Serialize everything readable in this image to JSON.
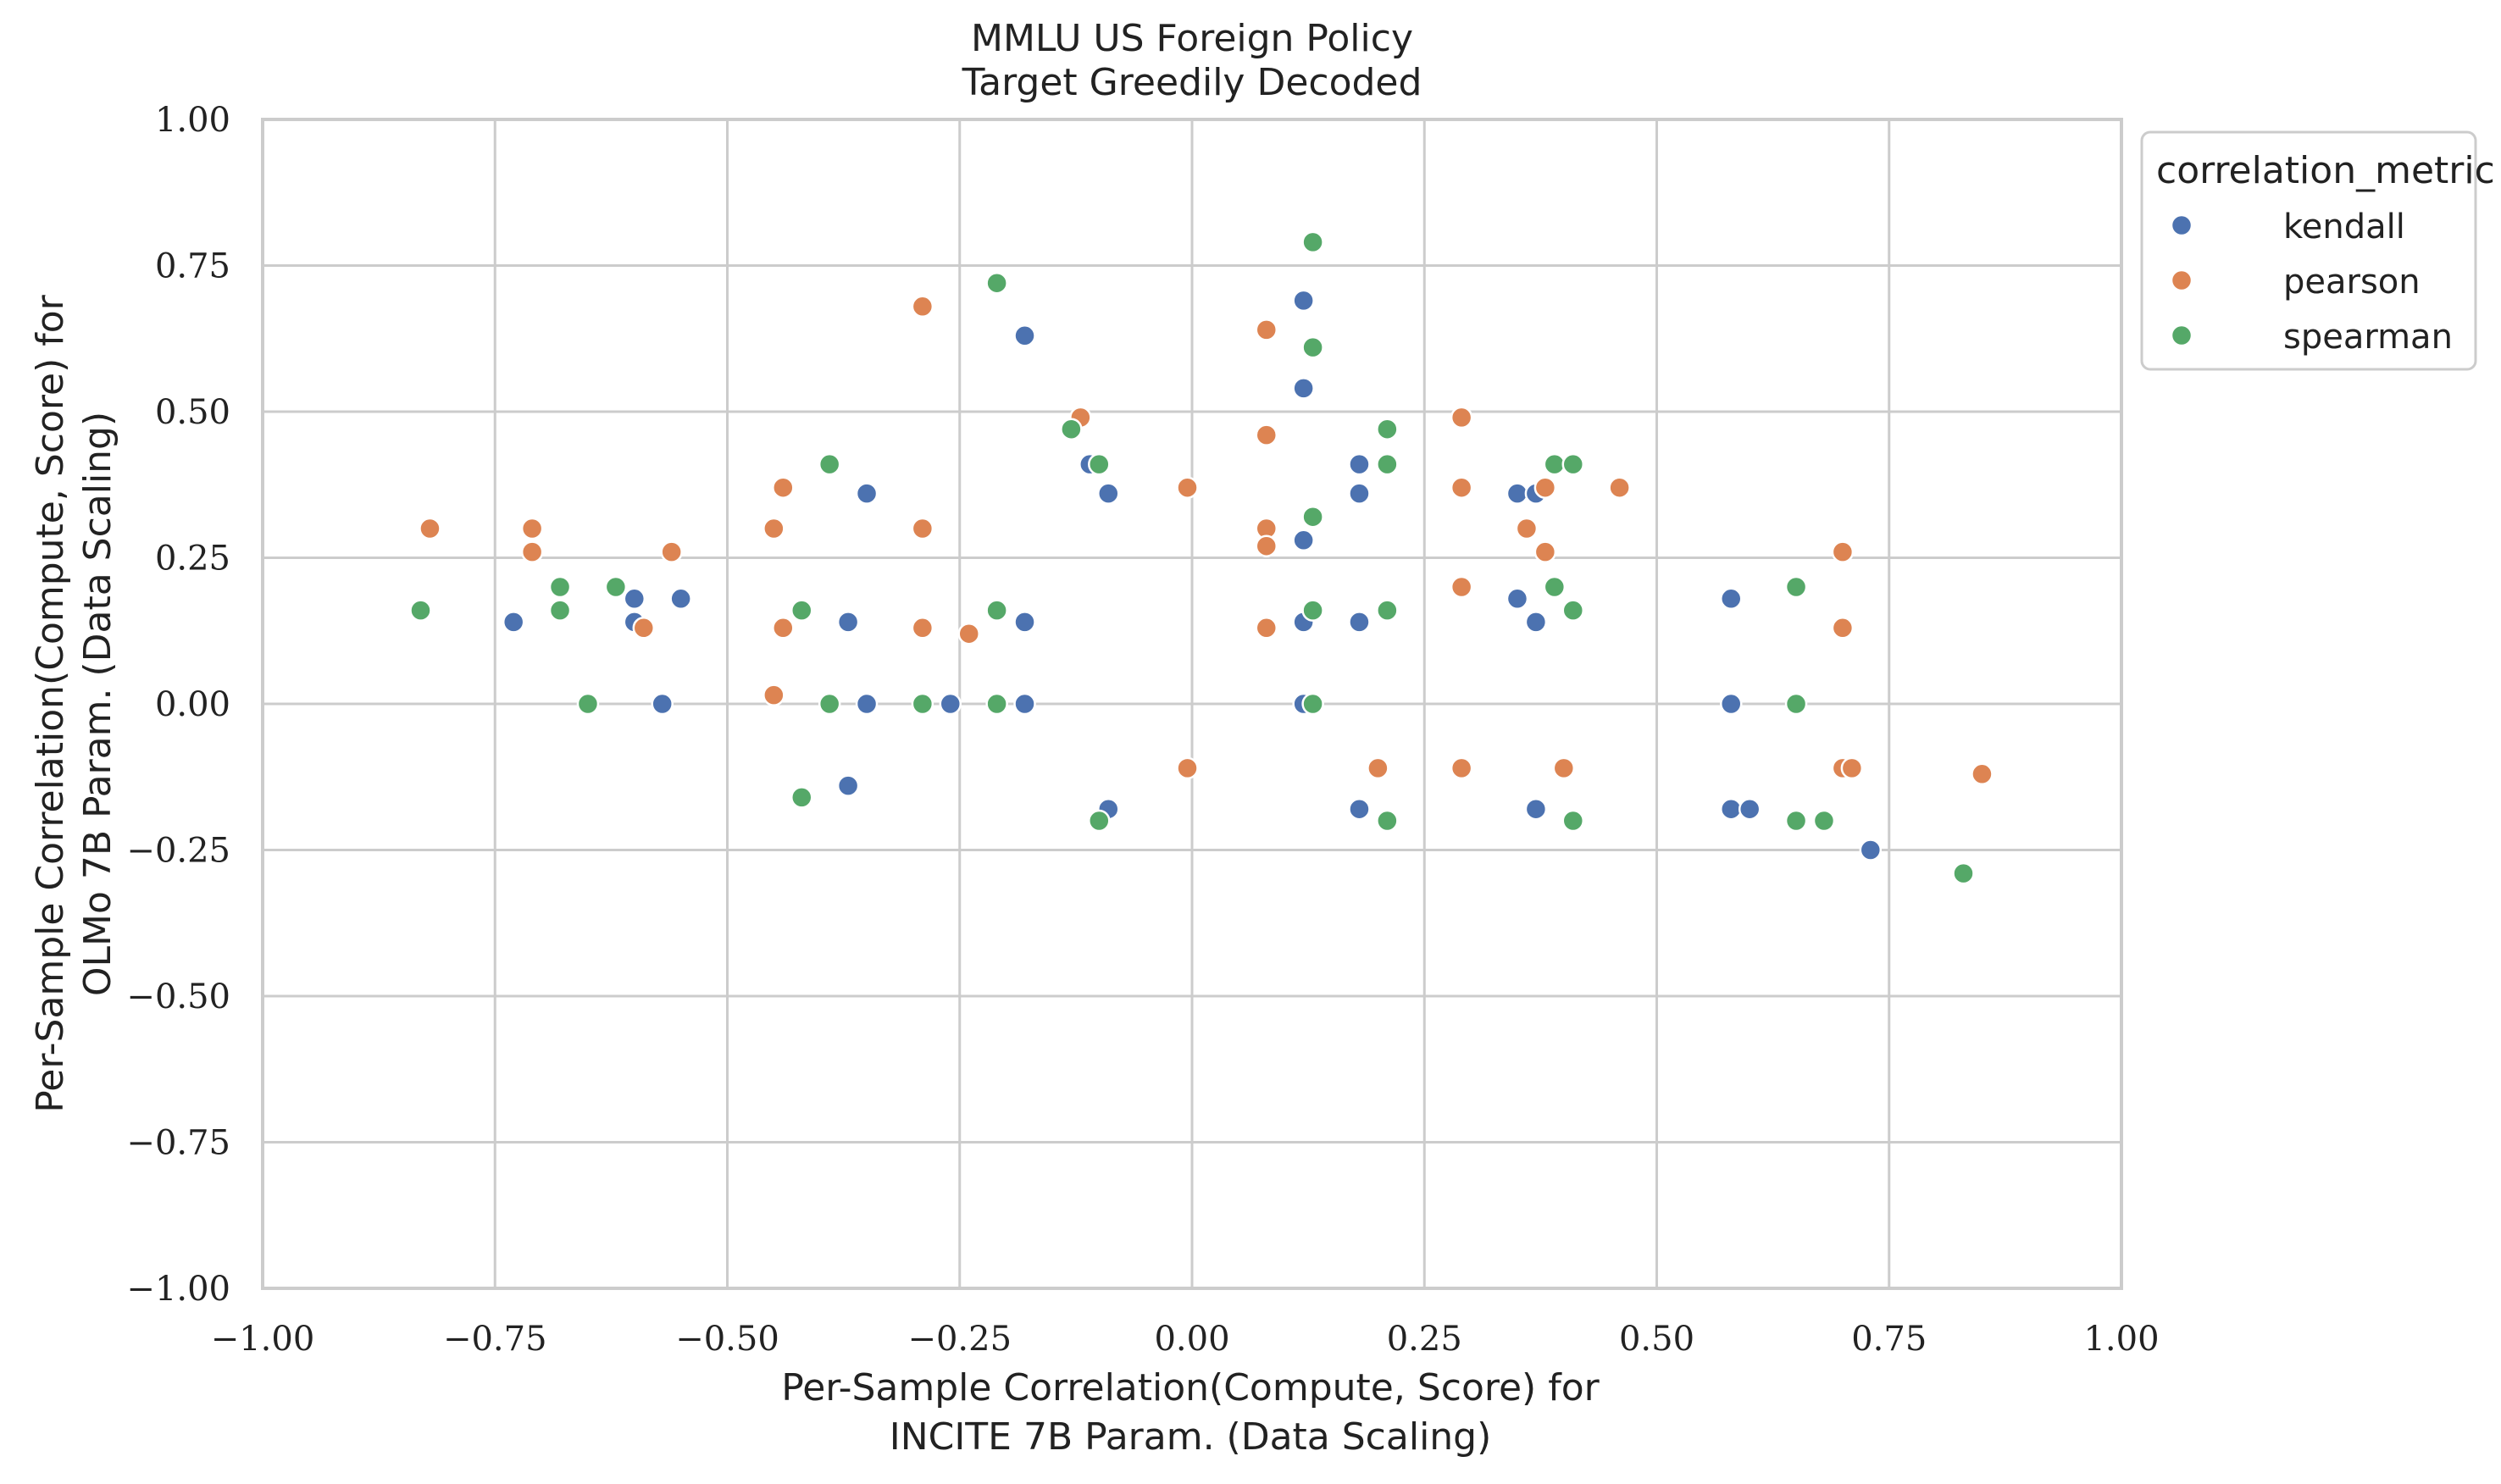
{
  "chart_data": {
    "type": "scatter",
    "title": "MMLU US Foreign Policy",
    "subtitle": "Target Greedily Decoded",
    "xlabel_line1": "Per-Sample Correlation(Compute, Score) for",
    "xlabel_line2": "INCITE 7B Param. (Data Scaling)",
    "ylabel_line1": "Per-Sample Correlation(Compute, Score) for",
    "ylabel_line2": "OLMo 7B Param. (Data Scaling)",
    "xlim": [
      -1.0,
      1.0
    ],
    "ylim": [
      -1.0,
      1.0
    ],
    "xticks": [
      -1.0,
      -0.75,
      -0.5,
      -0.25,
      0.0,
      0.25,
      0.5,
      0.75,
      1.0
    ],
    "yticks": [
      -1.0,
      -0.75,
      -0.5,
      -0.25,
      0.0,
      0.25,
      0.5,
      0.75,
      1.0
    ],
    "xtick_labels": [
      "−1.00",
      "−0.75",
      "−0.50",
      "−0.25",
      "0.00",
      "0.25",
      "0.50",
      "0.75",
      "1.00"
    ],
    "ytick_labels": [
      "−1.00",
      "−0.75",
      "−0.50",
      "−0.25",
      "0.00",
      "0.25",
      "0.50",
      "0.75",
      "1.00"
    ],
    "grid": true,
    "legend": {
      "title": "correlation_metric",
      "placement": "outside upper-right"
    },
    "series": [
      {
        "name": "kendall",
        "color": "#4C72B0",
        "points": [
          [
            -0.73,
            0.14
          ],
          [
            -0.6,
            0.18
          ],
          [
            -0.6,
            0.14
          ],
          [
            -0.57,
            0.0
          ],
          [
            -0.55,
            0.18
          ],
          [
            -0.35,
            0.36
          ],
          [
            -0.37,
            0.14
          ],
          [
            -0.35,
            0.0
          ],
          [
            -0.37,
            -0.14
          ],
          [
            -0.26,
            0.0
          ],
          [
            -0.18,
            0.63
          ],
          [
            -0.18,
            0.14
          ],
          [
            -0.18,
            0.0
          ],
          [
            -0.11,
            0.41
          ],
          [
            -0.09,
            0.36
          ],
          [
            -0.09,
            -0.18
          ],
          [
            0.12,
            0.69
          ],
          [
            0.12,
            0.54
          ],
          [
            0.12,
            0.28
          ],
          [
            0.12,
            0.14
          ],
          [
            0.12,
            0.0
          ],
          [
            0.18,
            0.41
          ],
          [
            0.18,
            0.36
          ],
          [
            0.18,
            0.14
          ],
          [
            0.18,
            -0.18
          ],
          [
            0.35,
            0.36
          ],
          [
            0.37,
            0.36
          ],
          [
            0.35,
            0.18
          ],
          [
            0.37,
            0.14
          ],
          [
            0.37,
            -0.18
          ],
          [
            0.58,
            0.18
          ],
          [
            0.58,
            0.0
          ],
          [
            0.58,
            -0.18
          ],
          [
            0.6,
            -0.18
          ],
          [
            0.73,
            -0.25
          ]
        ]
      },
      {
        "name": "pearson",
        "color": "#DD8452",
        "points": [
          [
            -0.82,
            0.3
          ],
          [
            -0.71,
            0.3
          ],
          [
            -0.71,
            0.26
          ],
          [
            -0.59,
            0.13
          ],
          [
            -0.56,
            0.26
          ],
          [
            -0.45,
            0.3
          ],
          [
            -0.44,
            0.37
          ],
          [
            -0.44,
            0.13
          ],
          [
            -0.45,
            0.015
          ],
          [
            -0.29,
            0.68
          ],
          [
            -0.29,
            0.3
          ],
          [
            -0.29,
            0.13
          ],
          [
            -0.24,
            0.12
          ],
          [
            -0.12,
            0.49
          ],
          [
            -0.005,
            0.37
          ],
          [
            -0.005,
            -0.11
          ],
          [
            0.08,
            0.64
          ],
          [
            0.08,
            0.46
          ],
          [
            0.08,
            0.3
          ],
          [
            0.08,
            0.27
          ],
          [
            0.08,
            0.13
          ],
          [
            0.2,
            -0.11
          ],
          [
            0.29,
            0.49
          ],
          [
            0.29,
            0.37
          ],
          [
            0.29,
            0.2
          ],
          [
            0.29,
            -0.11
          ],
          [
            0.36,
            0.3
          ],
          [
            0.38,
            0.37
          ],
          [
            0.38,
            0.26
          ],
          [
            0.4,
            -0.11
          ],
          [
            0.46,
            0.37
          ],
          [
            0.7,
            0.26
          ],
          [
            0.7,
            0.13
          ],
          [
            0.7,
            -0.11
          ],
          [
            0.71,
            -0.11
          ],
          [
            0.85,
            -0.12
          ]
        ]
      },
      {
        "name": "spearman",
        "color": "#55A868",
        "points": [
          [
            -0.83,
            0.16
          ],
          [
            -0.68,
            0.2
          ],
          [
            -0.68,
            0.16
          ],
          [
            -0.62,
            0.2
          ],
          [
            -0.65,
            0.0
          ],
          [
            -0.39,
            0.41
          ],
          [
            -0.42,
            0.16
          ],
          [
            -0.39,
            0.0
          ],
          [
            -0.42,
            -0.16
          ],
          [
            -0.29,
            0.0
          ],
          [
            -0.21,
            0.72
          ],
          [
            -0.21,
            0.16
          ],
          [
            -0.21,
            0.0
          ],
          [
            -0.13,
            0.47
          ],
          [
            -0.1,
            0.41
          ],
          [
            -0.1,
            -0.2
          ],
          [
            0.13,
            0.79
          ],
          [
            0.13,
            0.61
          ],
          [
            0.13,
            0.32
          ],
          [
            0.13,
            0.16
          ],
          [
            0.13,
            0.0
          ],
          [
            0.21,
            0.47
          ],
          [
            0.21,
            0.41
          ],
          [
            0.21,
            0.16
          ],
          [
            0.21,
            -0.2
          ],
          [
            0.39,
            0.41
          ],
          [
            0.41,
            0.41
          ],
          [
            0.39,
            0.2
          ],
          [
            0.41,
            0.16
          ],
          [
            0.41,
            -0.2
          ],
          [
            0.65,
            0.2
          ],
          [
            0.65,
            0.0
          ],
          [
            0.65,
            -0.2
          ],
          [
            0.68,
            -0.2
          ],
          [
            0.83,
            -0.29
          ]
        ]
      }
    ]
  }
}
